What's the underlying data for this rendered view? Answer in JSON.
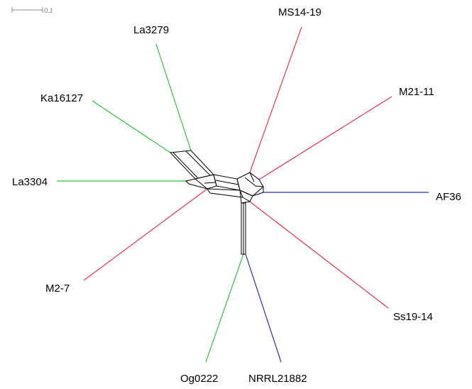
{
  "scale_bar": {
    "label": "0.1"
  },
  "colors": {
    "green": "#2fbf3c",
    "red": "#e8344f",
    "blue": "#2a2fb5",
    "network": "#000000"
  },
  "taxa": [
    {
      "id": "MS14-19",
      "label": "MS14-19",
      "color": "red"
    },
    {
      "id": "La3279",
      "label": "La3279",
      "color": "green"
    },
    {
      "id": "M21-11",
      "label": "M21-11",
      "color": "red"
    },
    {
      "id": "Ka16127",
      "label": "Ka16127",
      "color": "green"
    },
    {
      "id": "La3304",
      "label": "La3304",
      "color": "green"
    },
    {
      "id": "AF36",
      "label": "AF36",
      "color": "blue"
    },
    {
      "id": "M2-7",
      "label": "M2-7",
      "color": "red"
    },
    {
      "id": "Ss19-14",
      "label": "Ss19-14",
      "color": "red"
    },
    {
      "id": "Og0222",
      "label": "Og0222",
      "color": "green"
    },
    {
      "id": "NRRL21882",
      "label": "NRRL21882",
      "color": "blue"
    }
  ]
}
